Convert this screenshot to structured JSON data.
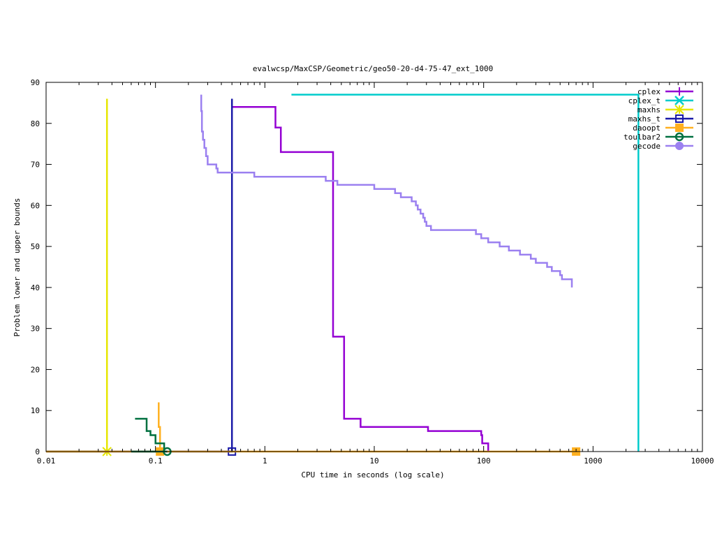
{
  "chart_data": {
    "type": "line",
    "title": "evalwcsp/MaxCSP/Geometric/geo50-20-d4-75-47_ext_1000",
    "xlabel": "CPU time in seconds (log scale)",
    "ylabel": "Problem lower and upper bounds",
    "x_scale": "log",
    "xlim": [
      0.01,
      10000
    ],
    "ylim": [
      0,
      90
    ],
    "x_ticks": [
      {
        "value": 0.01,
        "label": "0.01"
      },
      {
        "value": 0.1,
        "label": "0.1"
      },
      {
        "value": 1,
        "label": "1"
      },
      {
        "value": 10,
        "label": "10"
      },
      {
        "value": 100,
        "label": "100"
      },
      {
        "value": 1000,
        "label": "1000"
      },
      {
        "value": 10000,
        "label": "10000"
      }
    ],
    "y_ticks": [
      {
        "value": 0,
        "label": "0"
      },
      {
        "value": 10,
        "label": "10"
      },
      {
        "value": 20,
        "label": "20"
      },
      {
        "value": 30,
        "label": "30"
      },
      {
        "value": 40,
        "label": "40"
      },
      {
        "value": 50,
        "label": "50"
      },
      {
        "value": 60,
        "label": "60"
      },
      {
        "value": 70,
        "label": "70"
      },
      {
        "value": 80,
        "label": "80"
      },
      {
        "value": 90,
        "label": "90"
      }
    ],
    "grid": false,
    "legend_position": "top-right",
    "series": [
      {
        "name": "cplex",
        "color": "#9400d3",
        "marker": "plus",
        "points": [
          [
            0.5,
            84
          ],
          [
            1.25,
            84
          ],
          [
            1.25,
            79
          ],
          [
            1.4,
            79
          ],
          [
            1.4,
            73
          ],
          [
            4.2,
            73
          ],
          [
            4.2,
            28
          ],
          [
            5.3,
            28
          ],
          [
            5.3,
            8
          ],
          [
            7.5,
            8
          ],
          [
            7.5,
            6
          ],
          [
            31,
            6
          ],
          [
            31,
            5
          ],
          [
            95,
            5
          ],
          [
            95,
            4
          ],
          [
            97,
            4
          ],
          [
            97,
            2
          ],
          [
            110,
            2
          ],
          [
            110,
            0
          ]
        ],
        "marker_points": []
      },
      {
        "name": "cplex_t",
        "color": "#00cccc",
        "marker": "cross",
        "points": [
          [
            1.75,
            87
          ],
          [
            2600,
            87
          ],
          [
            2600,
            0
          ]
        ],
        "marker_points": []
      },
      {
        "name": "maxhs",
        "color": "#e6e600",
        "marker": "asterisk",
        "points": [
          [
            0.036,
            86
          ],
          [
            0.036,
            0
          ],
          [
            0.01,
            0
          ],
          [
            0.036,
            0
          ]
        ],
        "marker_points": [
          [
            0.036,
            0
          ]
        ]
      },
      {
        "name": "maxhs_t",
        "color": "#1a1aa8",
        "marker": "square",
        "points": [
          [
            0.5,
            86
          ],
          [
            0.5,
            0
          ],
          [
            0.01,
            0
          ],
          [
            0.5,
            0
          ]
        ],
        "marker_points": [
          [
            0.5,
            0
          ]
        ]
      },
      {
        "name": "daoopt",
        "color": "#ffb020",
        "marker": "filled-square",
        "points": [
          [
            0.107,
            12
          ],
          [
            0.107,
            6
          ],
          [
            0.11,
            6
          ],
          [
            0.11,
            0
          ],
          [
            0.01,
            0
          ],
          [
            700,
            0
          ]
        ],
        "marker_points": [
          [
            0.11,
            0
          ],
          [
            700,
            0
          ]
        ]
      },
      {
        "name": "toulbar2",
        "color": "#007040",
        "marker": "circle",
        "points": [
          [
            0.065,
            8
          ],
          [
            0.083,
            8
          ],
          [
            0.083,
            5
          ],
          [
            0.09,
            5
          ],
          [
            0.09,
            4
          ],
          [
            0.1,
            4
          ],
          [
            0.1,
            2
          ],
          [
            0.12,
            2
          ],
          [
            0.12,
            0
          ],
          [
            0.06,
            0
          ],
          [
            0.128,
            0
          ]
        ],
        "marker_points": [
          [
            0.128,
            0
          ]
        ]
      },
      {
        "name": "gecode",
        "color": "#9b80f0",
        "marker": "filled-circle",
        "points": [
          [
            0.262,
            87
          ],
          [
            0.262,
            83
          ],
          [
            0.266,
            83
          ],
          [
            0.266,
            78
          ],
          [
            0.272,
            78
          ],
          [
            0.272,
            76
          ],
          [
            0.28,
            76
          ],
          [
            0.28,
            74
          ],
          [
            0.29,
            74
          ],
          [
            0.29,
            72
          ],
          [
            0.3,
            72
          ],
          [
            0.3,
            70
          ],
          [
            0.36,
            70
          ],
          [
            0.36,
            69
          ],
          [
            0.37,
            69
          ],
          [
            0.37,
            68
          ],
          [
            0.8,
            68
          ],
          [
            0.8,
            67
          ],
          [
            3.6,
            67
          ],
          [
            3.6,
            66
          ],
          [
            4.6,
            66
          ],
          [
            4.6,
            65
          ],
          [
            10,
            65
          ],
          [
            10,
            64
          ],
          [
            15.5,
            64
          ],
          [
            15.5,
            63
          ],
          [
            17.5,
            63
          ],
          [
            17.5,
            62
          ],
          [
            22,
            62
          ],
          [
            22,
            61
          ],
          [
            24,
            61
          ],
          [
            24,
            60
          ],
          [
            25,
            60
          ],
          [
            25,
            59
          ],
          [
            26.5,
            59
          ],
          [
            26.5,
            58
          ],
          [
            28,
            58
          ],
          [
            28,
            57
          ],
          [
            29,
            57
          ],
          [
            29,
            56
          ],
          [
            30,
            56
          ],
          [
            30,
            55
          ],
          [
            33,
            55
          ],
          [
            33,
            54
          ],
          [
            85,
            54
          ],
          [
            85,
            53
          ],
          [
            95,
            53
          ],
          [
            95,
            52
          ],
          [
            110,
            52
          ],
          [
            110,
            51
          ],
          [
            140,
            51
          ],
          [
            140,
            50
          ],
          [
            170,
            50
          ],
          [
            170,
            49
          ],
          [
            215,
            49
          ],
          [
            215,
            48
          ],
          [
            270,
            48
          ],
          [
            270,
            47
          ],
          [
            300,
            47
          ],
          [
            300,
            46
          ],
          [
            380,
            46
          ],
          [
            380,
            45
          ],
          [
            420,
            45
          ],
          [
            420,
            44
          ],
          [
            500,
            44
          ],
          [
            500,
            43
          ],
          [
            520,
            43
          ],
          [
            520,
            42
          ],
          [
            640,
            42
          ],
          [
            640,
            40
          ]
        ],
        "marker_points": []
      }
    ]
  }
}
